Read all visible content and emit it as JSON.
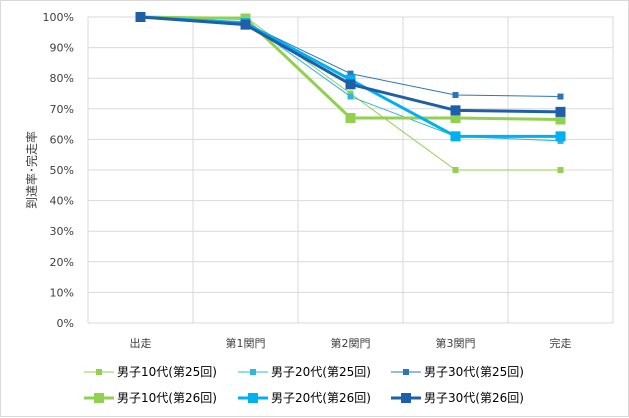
{
  "chart_data": {
    "type": "line",
    "title": "",
    "xlabel": "",
    "ylabel": "到達率･完走率",
    "categories": [
      "出走",
      "第1関門",
      "第2関門",
      "第3関門",
      "完走"
    ],
    "y_ticks": [
      "0%",
      "10%",
      "20%",
      "30%",
      "40%",
      "50%",
      "60%",
      "70%",
      "80%",
      "90%",
      "100%"
    ],
    "ylim": [
      0,
      100
    ],
    "grid": true,
    "legend_position": "bottom",
    "series": [
      {
        "name": "男子10代(第25回)",
        "color": "#92d050",
        "weight": "thin",
        "values": [
          100,
          100,
          75,
          50,
          50
        ]
      },
      {
        "name": "男子20代(第25回)",
        "color": "#31b4e0",
        "weight": "thin",
        "values": [
          100,
          98.5,
          74,
          61,
          59.5
        ]
      },
      {
        "name": "男子30代(第25回)",
        "color": "#2e75b6",
        "weight": "thin",
        "values": [
          100,
          98,
          81.5,
          74.5,
          74
        ]
      },
      {
        "name": "男子10代(第26回)",
        "color": "#92d050",
        "weight": "thick",
        "values": [
          100,
          99.5,
          67,
          67,
          66.5
        ]
      },
      {
        "name": "男子20代(第26回)",
        "color": "#00b0f0",
        "weight": "thick",
        "values": [
          100,
          98,
          79.5,
          61,
          61
        ]
      },
      {
        "name": "男子30代(第26回)",
        "color": "#1f5fa8",
        "weight": "thick",
        "values": [
          100,
          97.5,
          78,
          69.5,
          69
        ]
      }
    ]
  }
}
